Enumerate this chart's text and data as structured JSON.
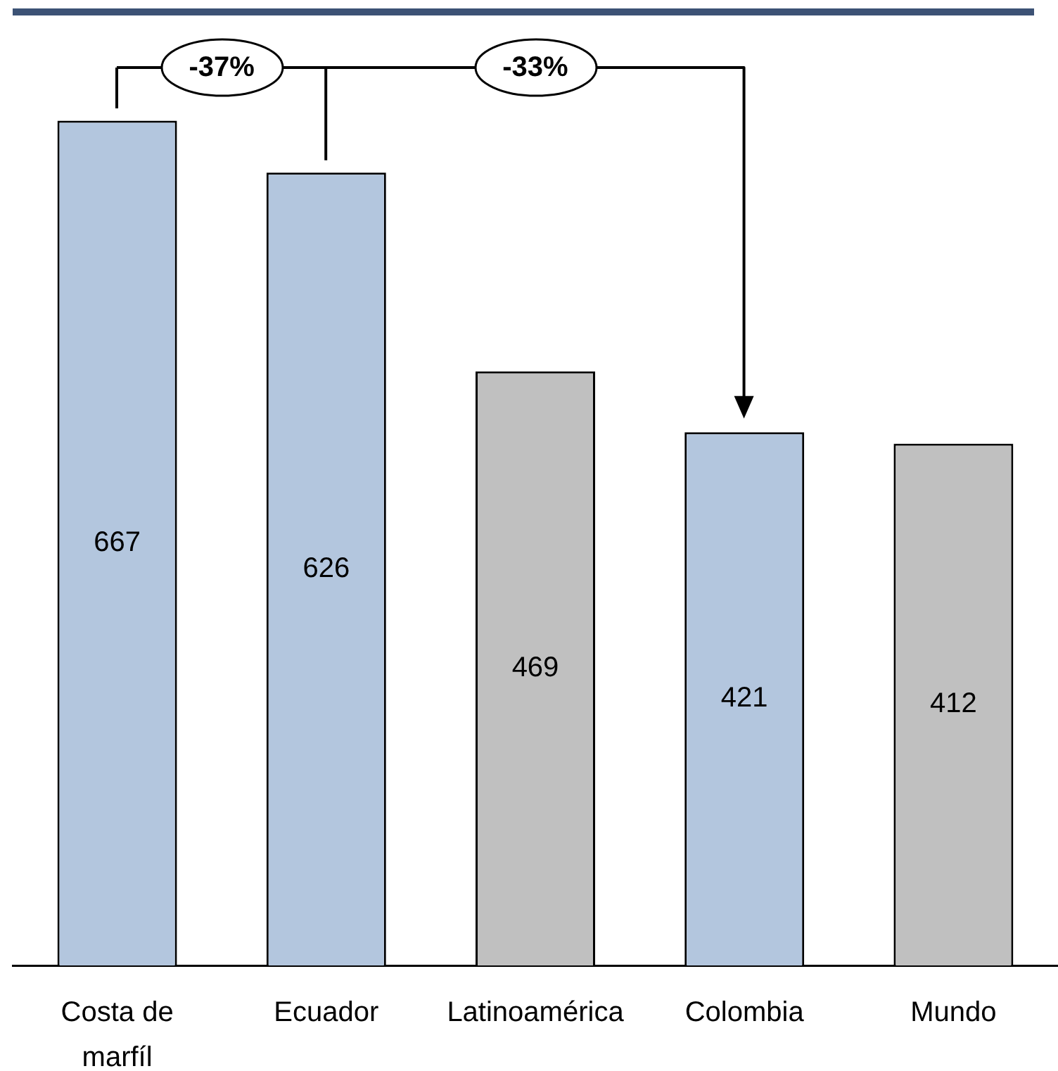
{
  "chart_data": {
    "type": "bar",
    "categories": [
      "Costa de marfíl",
      "Ecuador",
      "Latinoamérica",
      "Colombia",
      "Mundo"
    ],
    "values": [
      667,
      626,
      469,
      421,
      412
    ],
    "colors": [
      "#b3c6de",
      "#b3c6de",
      "#c0c0c0",
      "#b3c6de",
      "#c0c0c0"
    ],
    "data_labels": true,
    "tick_labels": "x",
    "annotations": [
      "-37%",
      "-33%"
    ]
  }
}
